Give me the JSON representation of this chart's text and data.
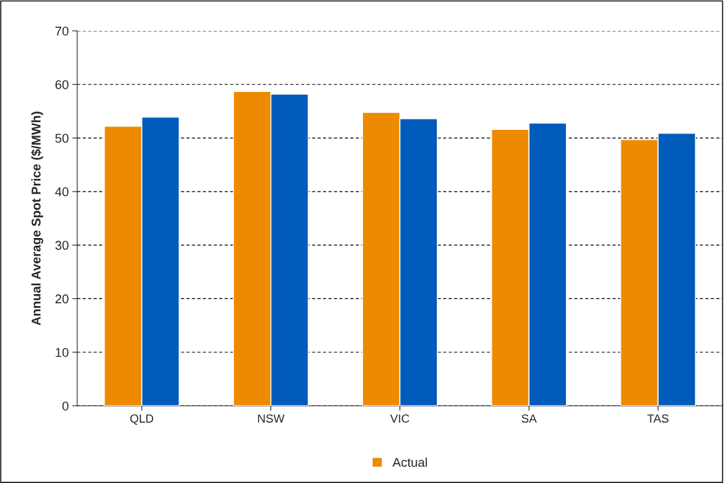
{
  "chart_data": {
    "type": "bar",
    "ylabel": "Annual Average Spot Price ($/MWh)",
    "categories": [
      "QLD",
      "NSW",
      "VIC",
      "SA",
      "TAS"
    ],
    "series": [
      {
        "name": "Actual",
        "color": "#ee8a00",
        "values": [
          52.2,
          58.7,
          54.8,
          51.6,
          49.7
        ]
      },
      {
        "color": "#005bbb",
        "values": [
          53.9,
          58.2,
          53.6,
          52.8,
          50.9
        ]
      }
    ],
    "ylim": [
      0,
      70
    ],
    "yticks": [
      0,
      10,
      20,
      30,
      40,
      50,
      60,
      70
    ],
    "grid": "y",
    "legend": "bottom"
  }
}
